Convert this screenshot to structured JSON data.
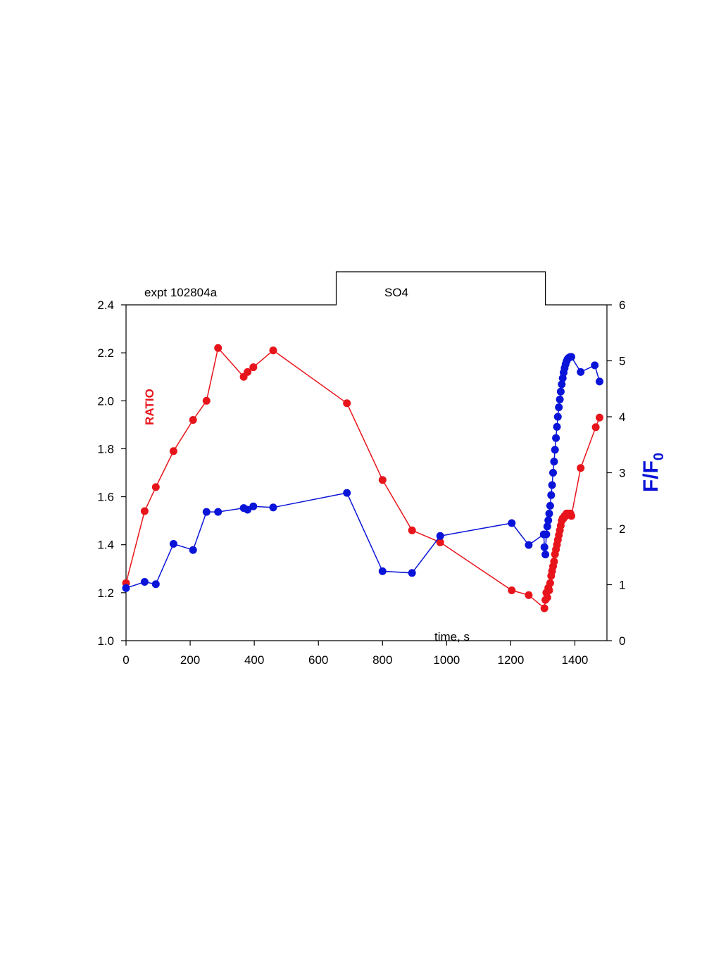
{
  "chart_data": {
    "type": "line",
    "annotations": {
      "experiment": "expt 102804a",
      "stimulus": "SO4",
      "stimulus_on": 660,
      "stimulus_off": 1308
    },
    "xlabel": "time, s",
    "xlim": [
      0,
      1500
    ],
    "x_ticks": [
      "0",
      "200",
      "400",
      "600",
      "800",
      "1000",
      "1200",
      "1400"
    ],
    "y_left": {
      "label": "RATIO",
      "lim": [
        1.0,
        2.4
      ],
      "ticks": [
        "1.0",
        "1.2",
        "1.4",
        "1.6",
        "1.8",
        "2.0",
        "2.2",
        "2.4"
      ],
      "color": "#e8141b"
    },
    "y_right": {
      "label": "F/F",
      "label_sub": "0",
      "lim": [
        0,
        6
      ],
      "ticks": [
        "0",
        "1",
        "2",
        "3",
        "4",
        "5",
        "6"
      ],
      "color": "#0a14d8"
    },
    "series": [
      {
        "axis": "left",
        "color": "#e8141b",
        "points": [
          [
            0,
            1.24
          ],
          [
            58,
            1.54
          ],
          [
            93,
            1.64
          ],
          [
            148,
            1.79
          ],
          [
            209,
            1.92
          ],
          [
            251,
            2.0
          ],
          [
            287,
            2.22
          ],
          [
            367,
            2.1
          ],
          [
            379,
            2.12
          ],
          [
            397,
            2.14
          ],
          [
            459,
            2.21
          ],
          [
            689,
            1.99
          ],
          [
            800,
            1.67
          ],
          [
            892,
            1.46
          ],
          [
            980,
            1.41
          ],
          [
            1203,
            1.21
          ],
          [
            1256,
            1.19
          ],
          [
            1305,
            1.135
          ],
          [
            1308,
            1.17
          ],
          [
            1311,
            1.2
          ],
          [
            1314,
            1.18
          ],
          [
            1317,
            1.22
          ],
          [
            1320,
            1.21
          ],
          [
            1323,
            1.24
          ],
          [
            1326,
            1.27
          ],
          [
            1329,
            1.29
          ],
          [
            1332,
            1.31
          ],
          [
            1335,
            1.33
          ],
          [
            1338,
            1.36
          ],
          [
            1341,
            1.38
          ],
          [
            1344,
            1.4
          ],
          [
            1347,
            1.42
          ],
          [
            1350,
            1.44
          ],
          [
            1353,
            1.46
          ],
          [
            1356,
            1.48
          ],
          [
            1359,
            1.5
          ],
          [
            1362,
            1.51
          ],
          [
            1365,
            1.51
          ],
          [
            1368,
            1.52
          ],
          [
            1371,
            1.52
          ],
          [
            1374,
            1.53
          ],
          [
            1377,
            1.53
          ],
          [
            1380,
            1.53
          ],
          [
            1383,
            1.53
          ],
          [
            1386,
            1.53
          ],
          [
            1389,
            1.52
          ],
          [
            1418,
            1.72
          ],
          [
            1465,
            1.89
          ],
          [
            1477,
            1.93
          ]
        ]
      },
      {
        "axis": "right",
        "color": "#0a14d8",
        "points": [
          [
            0,
            0.94
          ],
          [
            58,
            1.05
          ],
          [
            93,
            1.01
          ],
          [
            148,
            1.73
          ],
          [
            209,
            1.62
          ],
          [
            251,
            2.3
          ],
          [
            287,
            2.3
          ],
          [
            367,
            2.37
          ],
          [
            379,
            2.34
          ],
          [
            397,
            2.4
          ],
          [
            459,
            2.38
          ],
          [
            689,
            2.64
          ],
          [
            800,
            1.24
          ],
          [
            892,
            1.21
          ],
          [
            980,
            1.87
          ],
          [
            1203,
            2.1
          ],
          [
            1256,
            1.71
          ],
          [
            1303,
            1.9
          ],
          [
            1305,
            1.67
          ],
          [
            1308,
            1.54
          ],
          [
            1311,
            1.9
          ],
          [
            1314,
            2.04
          ],
          [
            1317,
            2.15
          ],
          [
            1320,
            2.27
          ],
          [
            1323,
            2.41
          ],
          [
            1326,
            2.6
          ],
          [
            1329,
            2.78
          ],
          [
            1332,
            3.0
          ],
          [
            1335,
            3.2
          ],
          [
            1338,
            3.41
          ],
          [
            1341,
            3.62
          ],
          [
            1344,
            3.82
          ],
          [
            1347,
            4.0
          ],
          [
            1350,
            4.17
          ],
          [
            1353,
            4.31
          ],
          [
            1356,
            4.45
          ],
          [
            1359,
            4.58
          ],
          [
            1362,
            4.69
          ],
          [
            1365,
            4.79
          ],
          [
            1368,
            4.87
          ],
          [
            1371,
            4.94
          ],
          [
            1374,
            4.99
          ],
          [
            1377,
            5.03
          ],
          [
            1380,
            5.05
          ],
          [
            1383,
            5.06
          ],
          [
            1386,
            5.07
          ],
          [
            1389,
            5.07
          ],
          [
            1418,
            4.8
          ],
          [
            1462,
            4.92
          ],
          [
            1477,
            4.63
          ]
        ]
      }
    ]
  }
}
